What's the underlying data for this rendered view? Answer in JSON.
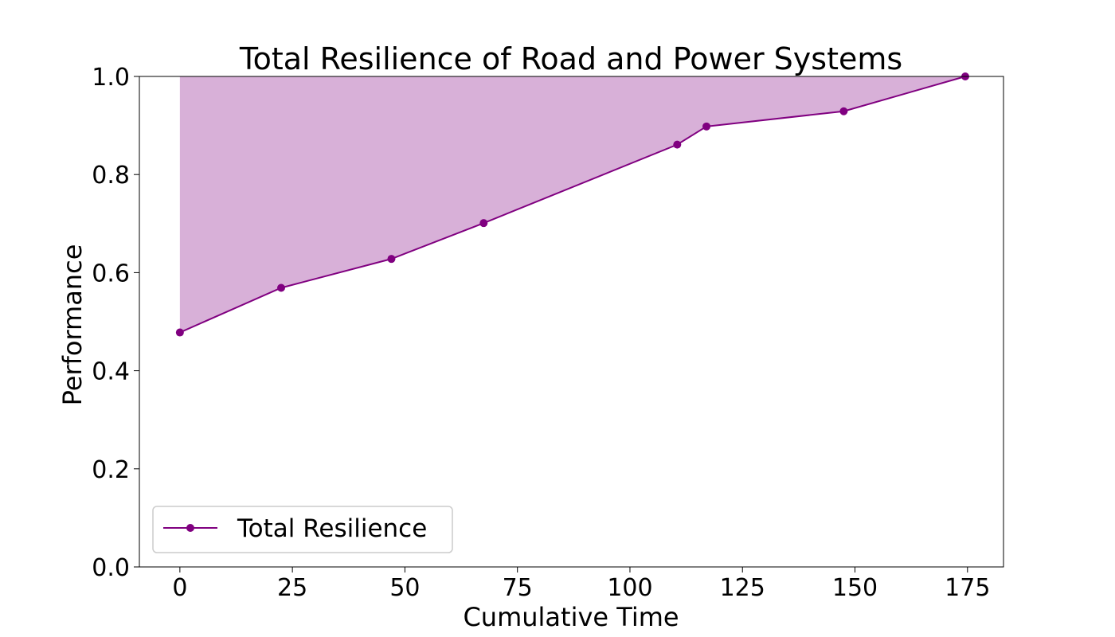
{
  "chart_data": {
    "type": "area",
    "title": "Total Resilience of Road and Power Systems",
    "xlabel": "Cumulative Time",
    "ylabel": "Performance",
    "xlim": [
      -9,
      183
    ],
    "ylim": [
      0.0,
      1.0
    ],
    "xticks": [
      0,
      25,
      50,
      75,
      100,
      125,
      150,
      175
    ],
    "yticks": [
      0.0,
      0.2,
      0.4,
      0.6,
      0.8,
      1.0
    ],
    "xtick_labels": [
      "0",
      "25",
      "50",
      "75",
      "100",
      "125",
      "150",
      "175"
    ],
    "ytick_labels": [
      "0.0",
      "0.2",
      "0.4",
      "0.6",
      "0.8",
      "1.0"
    ],
    "grid": false,
    "legend_position": "lower-left",
    "fill_between": "series and 1.0",
    "series": [
      {
        "name": "Total Resilience",
        "color": "#800080",
        "fill_color": "#d8b0d8",
        "marker": "circle",
        "x": [
          0,
          22.5,
          47,
          67.5,
          110.5,
          117,
          147.5,
          174.5
        ],
        "y": [
          0.478,
          0.569,
          0.628,
          0.701,
          0.861,
          0.898,
          0.929,
          1.0
        ]
      }
    ]
  }
}
